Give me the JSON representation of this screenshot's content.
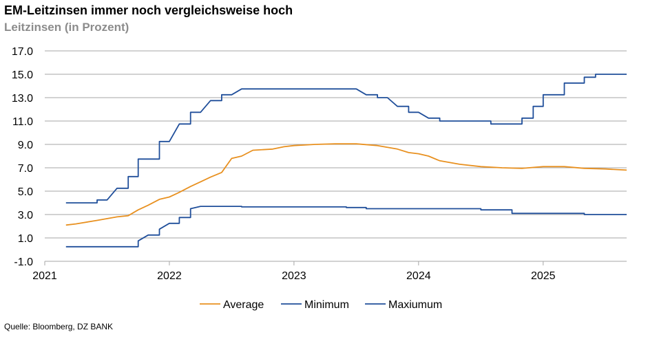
{
  "header": {
    "title": "EM-Leitzinsen immer noch vergleichsweise hoch",
    "subtitle": "Leitzinsen (in Prozent)"
  },
  "footer": {
    "source": "Quelle: Bloomberg, DZ BANK"
  },
  "chart_data": {
    "type": "line",
    "title": "EM-Leitzinsen immer noch vergleichsweise hoch",
    "subtitle": "Leitzinsen (in Prozent)",
    "xlim": [
      2021.0,
      2025.67
    ],
    "ylim": [
      -1.0,
      17.0
    ],
    "y_ticks": [
      "17.0",
      "15.0",
      "13.0",
      "11.0",
      "9.0",
      "7.0",
      "5.0",
      "3.0",
      "1.0",
      "-1.0"
    ],
    "y_tick_values": [
      17,
      15,
      13,
      11,
      9,
      7,
      5,
      3,
      1,
      -1
    ],
    "x_ticks": [
      "2021",
      "2022",
      "2023",
      "2024",
      "2025"
    ],
    "x_tick_values": [
      2021,
      2022,
      2023,
      2024,
      2025
    ],
    "grid": true,
    "legend_position": "bottom",
    "series": [
      {
        "name": "Average",
        "color": "#e8901f",
        "points": [
          [
            2021.17,
            2.1
          ],
          [
            2021.25,
            2.2
          ],
          [
            2021.42,
            2.5
          ],
          [
            2021.58,
            2.8
          ],
          [
            2021.67,
            2.9
          ],
          [
            2021.75,
            3.4
          ],
          [
            2021.83,
            3.8
          ],
          [
            2021.92,
            4.3
          ],
          [
            2022.0,
            4.5
          ],
          [
            2022.08,
            4.9
          ],
          [
            2022.17,
            5.4
          ],
          [
            2022.25,
            5.8
          ],
          [
            2022.33,
            6.2
          ],
          [
            2022.42,
            6.6
          ],
          [
            2022.5,
            7.8
          ],
          [
            2022.58,
            8.0
          ],
          [
            2022.67,
            8.5
          ],
          [
            2022.83,
            8.6
          ],
          [
            2022.92,
            8.8
          ],
          [
            2023.0,
            8.9
          ],
          [
            2023.17,
            9.0
          ],
          [
            2023.33,
            9.05
          ],
          [
            2023.5,
            9.05
          ],
          [
            2023.67,
            8.9
          ],
          [
            2023.83,
            8.6
          ],
          [
            2023.92,
            8.3
          ],
          [
            2024.0,
            8.2
          ],
          [
            2024.08,
            8.0
          ],
          [
            2024.17,
            7.6
          ],
          [
            2024.33,
            7.3
          ],
          [
            2024.5,
            7.1
          ],
          [
            2024.67,
            7.0
          ],
          [
            2024.83,
            6.95
          ],
          [
            2025.0,
            7.1
          ],
          [
            2025.17,
            7.1
          ],
          [
            2025.33,
            6.95
          ],
          [
            2025.5,
            6.9
          ],
          [
            2025.67,
            6.8
          ]
        ]
      },
      {
        "name": "Minimum",
        "color": "#1f4e9a",
        "points": [
          [
            2021.17,
            0.25
          ],
          [
            2021.75,
            0.25
          ],
          [
            2021.75,
            0.75
          ],
          [
            2021.83,
            1.25
          ],
          [
            2021.92,
            1.25
          ],
          [
            2021.92,
            1.75
          ],
          [
            2022.0,
            2.25
          ],
          [
            2022.08,
            2.25
          ],
          [
            2022.08,
            2.75
          ],
          [
            2022.17,
            2.75
          ],
          [
            2022.17,
            3.5
          ],
          [
            2022.25,
            3.7
          ],
          [
            2022.58,
            3.7
          ],
          [
            2022.58,
            3.65
          ],
          [
            2023.42,
            3.65
          ],
          [
            2023.42,
            3.6
          ],
          [
            2023.58,
            3.6
          ],
          [
            2023.58,
            3.5
          ],
          [
            2024.5,
            3.5
          ],
          [
            2024.5,
            3.4
          ],
          [
            2024.75,
            3.4
          ],
          [
            2024.75,
            3.1
          ],
          [
            2025.33,
            3.1
          ],
          [
            2025.33,
            3.0
          ],
          [
            2025.67,
            3.0
          ]
        ]
      },
      {
        "name": "Maxiumum",
        "color": "#1f4e9a",
        "points": [
          [
            2021.17,
            4.0
          ],
          [
            2021.42,
            4.0
          ],
          [
            2021.42,
            4.25
          ],
          [
            2021.5,
            4.25
          ],
          [
            2021.58,
            5.25
          ],
          [
            2021.67,
            5.25
          ],
          [
            2021.67,
            6.25
          ],
          [
            2021.75,
            6.25
          ],
          [
            2021.75,
            7.75
          ],
          [
            2021.92,
            7.75
          ],
          [
            2021.92,
            9.25
          ],
          [
            2022.0,
            9.25
          ],
          [
            2022.08,
            10.75
          ],
          [
            2022.17,
            10.75
          ],
          [
            2022.17,
            11.75
          ],
          [
            2022.25,
            11.75
          ],
          [
            2022.33,
            12.75
          ],
          [
            2022.42,
            12.75
          ],
          [
            2022.42,
            13.25
          ],
          [
            2022.5,
            13.25
          ],
          [
            2022.58,
            13.75
          ],
          [
            2023.5,
            13.75
          ],
          [
            2023.58,
            13.25
          ],
          [
            2023.67,
            13.25
          ],
          [
            2023.67,
            13.0
          ],
          [
            2023.75,
            13.0
          ],
          [
            2023.83,
            12.25
          ],
          [
            2023.92,
            12.25
          ],
          [
            2023.92,
            11.75
          ],
          [
            2024.0,
            11.75
          ],
          [
            2024.08,
            11.25
          ],
          [
            2024.17,
            11.25
          ],
          [
            2024.17,
            11.0
          ],
          [
            2024.58,
            11.0
          ],
          [
            2024.58,
            10.75
          ],
          [
            2024.83,
            10.75
          ],
          [
            2024.83,
            11.25
          ],
          [
            2024.92,
            11.25
          ],
          [
            2024.92,
            12.25
          ],
          [
            2025.0,
            12.25
          ],
          [
            2025.0,
            13.25
          ],
          [
            2025.17,
            13.25
          ],
          [
            2025.17,
            14.25
          ],
          [
            2025.33,
            14.25
          ],
          [
            2025.33,
            14.75
          ],
          [
            2025.42,
            14.75
          ],
          [
            2025.42,
            15.0
          ],
          [
            2025.67,
            15.0
          ]
        ]
      }
    ]
  }
}
